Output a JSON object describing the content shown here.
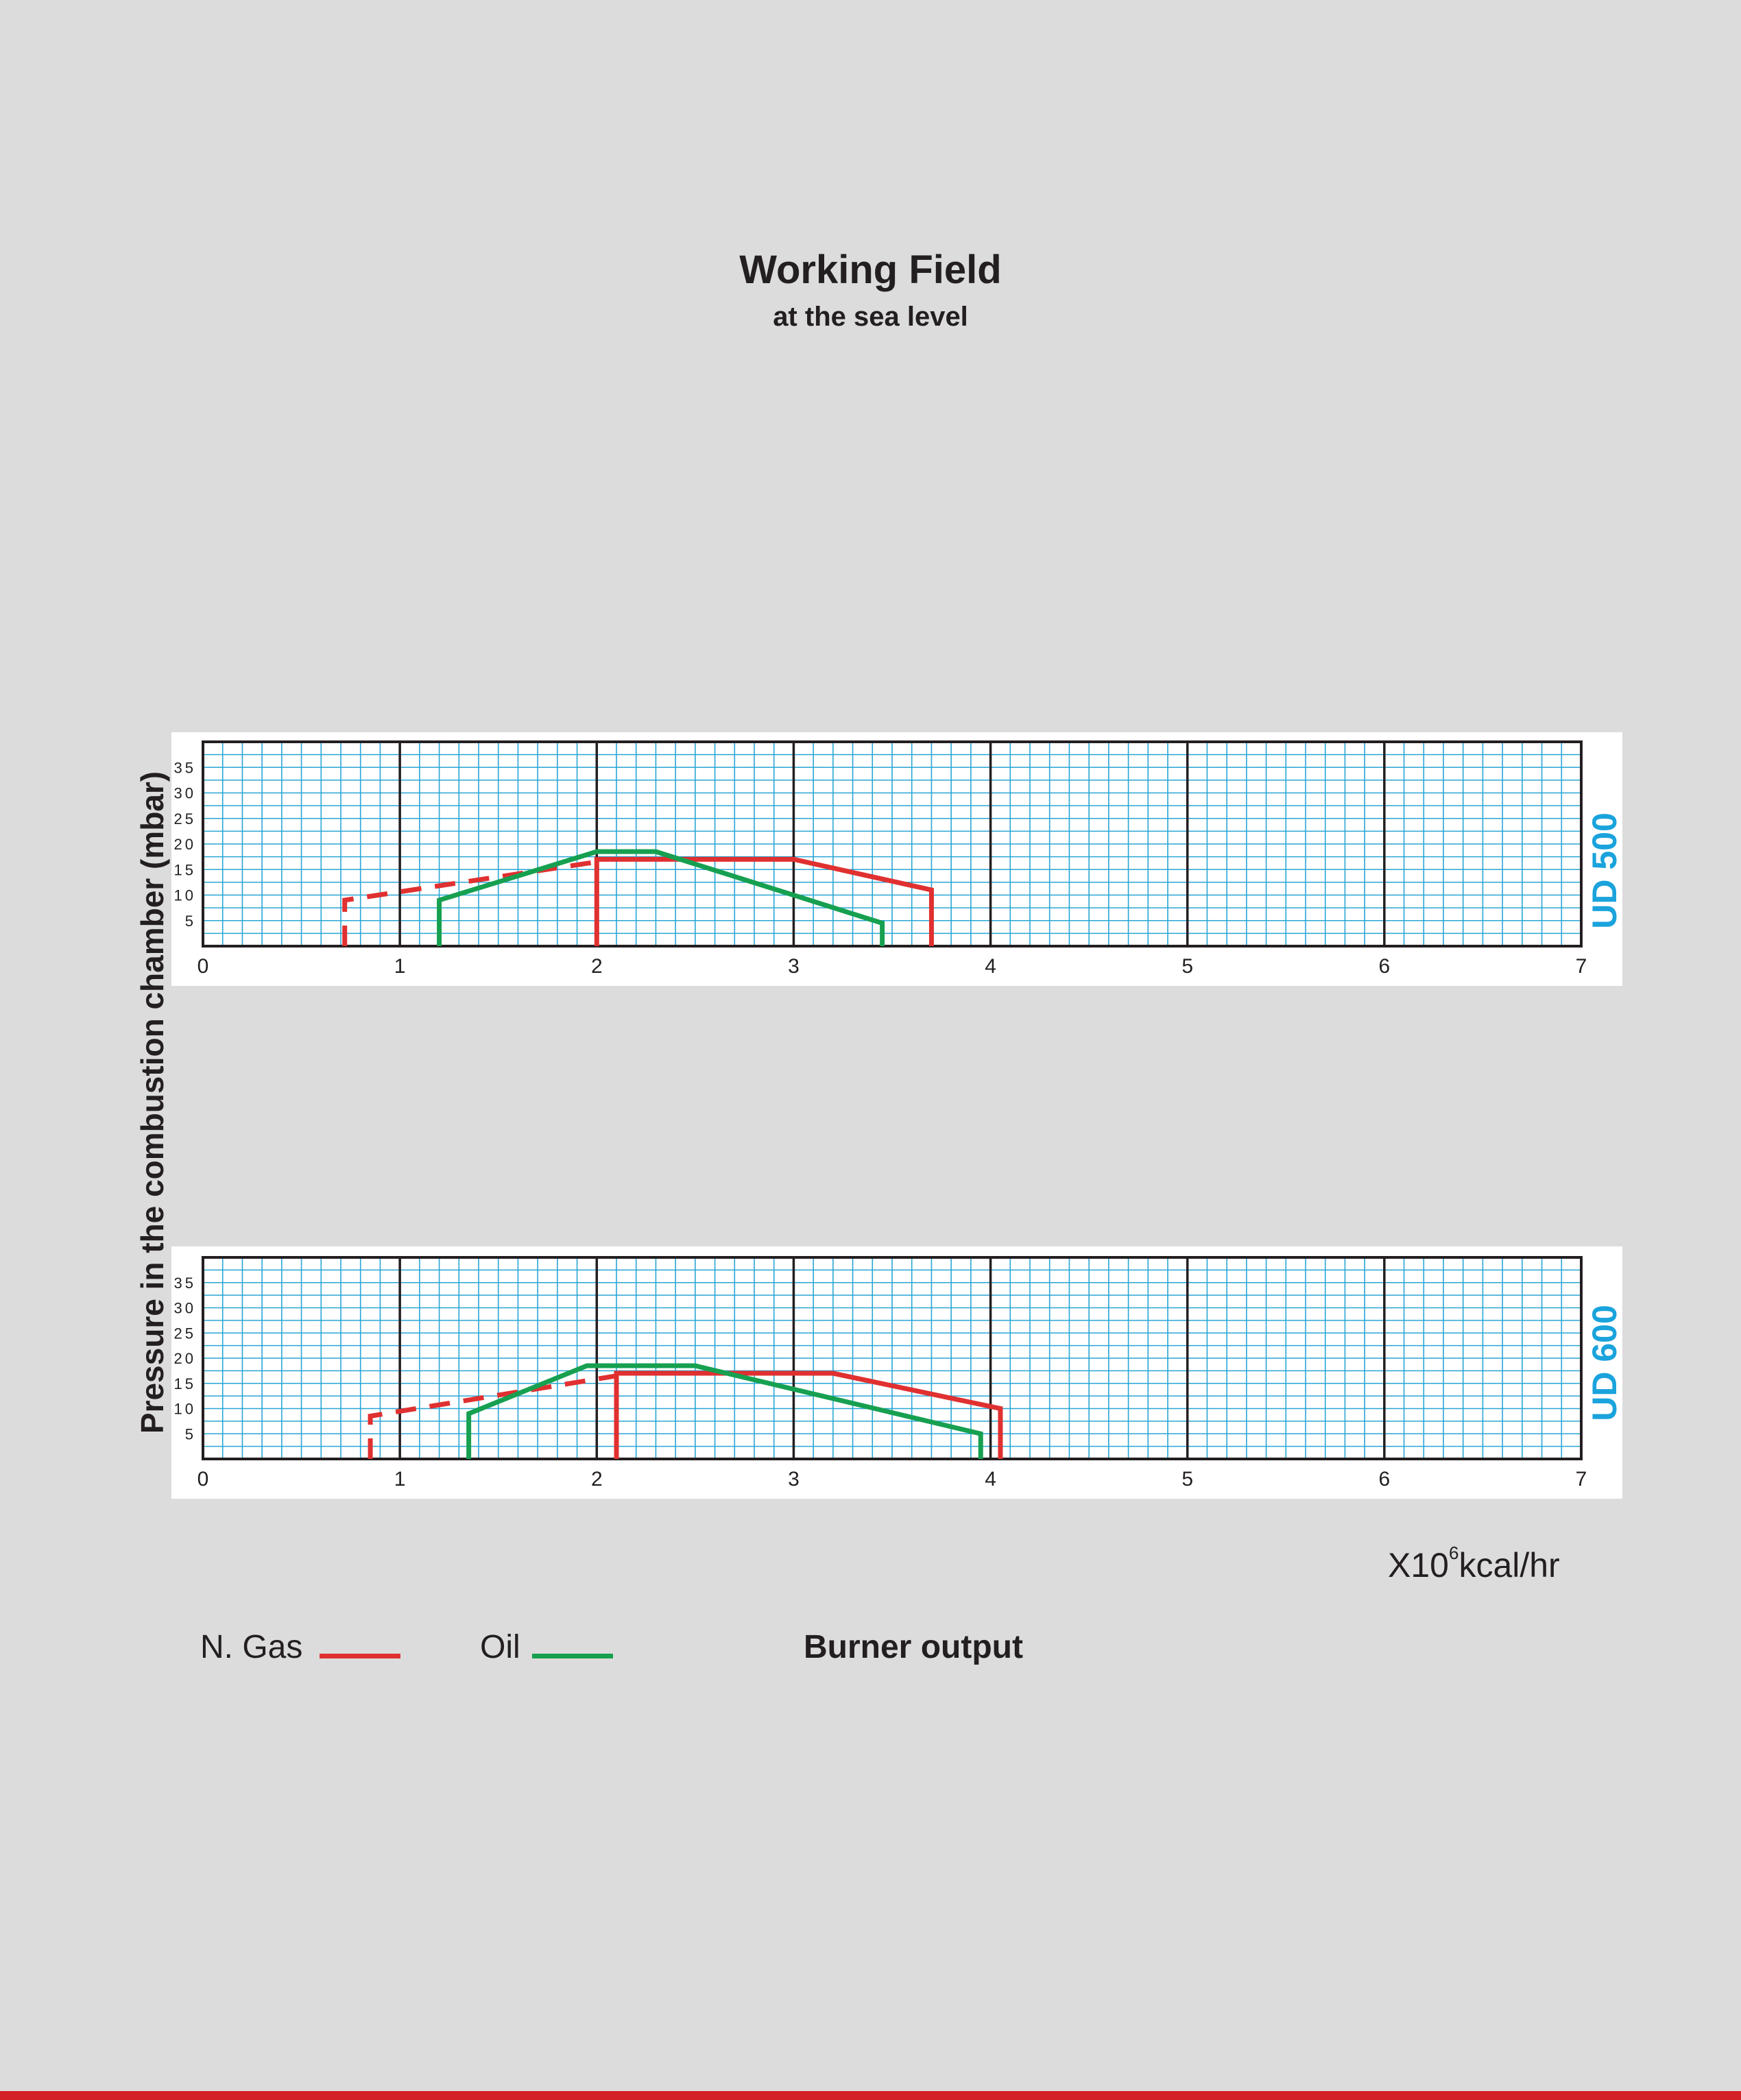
{
  "title": "Working Field",
  "subtitle": "at the sea level",
  "ylabel": "Pressure in the combustion chamber (mbar)",
  "xlabel_prefix": "X10",
  "xlabel_exp": "6",
  "xlabel_unit": "kcal/hr",
  "legend": {
    "gas_label": "N. Gas",
    "oil_label": "Oil",
    "burner_output": "Burner output"
  },
  "colors": {
    "gas": "#e03030",
    "oil": "#16a050",
    "grid": "#29a6d6",
    "model_label": "#1aa3dc",
    "bottom_stripe": "#d42027"
  },
  "chart_data": [
    {
      "type": "line",
      "model": "UD 500",
      "xlim": [
        0,
        7
      ],
      "ylim": [
        0,
        40
      ],
      "x_ticks": [
        "0",
        "1",
        "2",
        "3",
        "4",
        "5",
        "6",
        "7"
      ],
      "y_ticks": [
        "5",
        "10",
        "15",
        "20",
        "25",
        "30",
        "35"
      ],
      "grid": true,
      "series": [
        {
          "name": "N. Gas",
          "color": "gas",
          "dashed_part": [
            [
              0.72,
              0
            ],
            [
              0.72,
              9
            ],
            [
              2.0,
              16.5
            ]
          ],
          "solid_part": [
            [
              2.0,
              0
            ],
            [
              2.0,
              17
            ],
            [
              3.0,
              17
            ],
            [
              3.7,
              11
            ],
            [
              3.7,
              0
            ]
          ]
        },
        {
          "name": "Oil",
          "color": "oil",
          "solid_part": [
            [
              1.2,
              0
            ],
            [
              1.2,
              9
            ],
            [
              2.0,
              18.5
            ],
            [
              2.3,
              18.5
            ],
            [
              3.45,
              4.5
            ],
            [
              3.45,
              0
            ]
          ]
        }
      ]
    },
    {
      "type": "line",
      "model": "UD 600",
      "xlim": [
        0,
        7
      ],
      "ylim": [
        0,
        40
      ],
      "x_ticks": [
        "0",
        "1",
        "2",
        "3",
        "4",
        "5",
        "6",
        "7"
      ],
      "y_ticks": [
        "5",
        "10",
        "15",
        "20",
        "25",
        "30",
        "35"
      ],
      "grid": true,
      "series": [
        {
          "name": "N. Gas",
          "color": "gas",
          "dashed_part": [
            [
              0.85,
              0
            ],
            [
              0.85,
              8.5
            ],
            [
              2.1,
              16.5
            ]
          ],
          "solid_part": [
            [
              2.1,
              0
            ],
            [
              2.1,
              17
            ],
            [
              3.2,
              17
            ],
            [
              4.05,
              10
            ],
            [
              4.05,
              0
            ]
          ]
        },
        {
          "name": "Oil",
          "color": "oil",
          "solid_part": [
            [
              1.35,
              0
            ],
            [
              1.35,
              9
            ],
            [
              1.95,
              18.5
            ],
            [
              2.5,
              18.5
            ],
            [
              3.95,
              5
            ],
            [
              3.95,
              0
            ]
          ]
        }
      ]
    }
  ]
}
